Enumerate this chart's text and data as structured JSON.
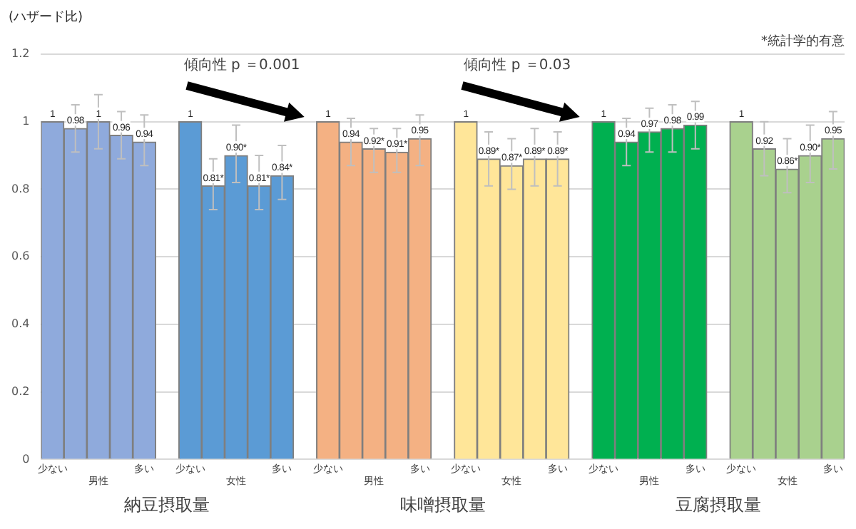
{
  "chart_data": {
    "type": "bar",
    "ylabel": "(ハザード比)",
    "categories": [
      "少ない",
      null,
      "男性",
      null,
      "多い",
      null,
      "少ない",
      null,
      "女性",
      null,
      "多い",
      null,
      "少ない",
      null,
      "男性",
      null,
      "多い",
      null,
      "少ない",
      null,
      "女性",
      null,
      "多い",
      null,
      "少ない",
      null,
      "男性",
      null,
      "多い",
      null,
      "少ない",
      null,
      "女性",
      null,
      "多い"
    ],
    "values": [
      1,
      0.98,
      1,
      0.96,
      0.94,
      null,
      1,
      0.81,
      0.9,
      0.81,
      0.84,
      null,
      1,
      0.94,
      0.92,
      0.91,
      0.95,
      null,
      1,
      0.89,
      0.87,
      0.89,
      0.89,
      null,
      1,
      0.94,
      0.97,
      0.98,
      0.99,
      null,
      1,
      0.92,
      0.86,
      0.9,
      0.95
    ],
    "value_labels": [
      "1",
      "0.98",
      "1",
      "0.96",
      "0.94",
      null,
      "1",
      "0.81*",
      "0.90*",
      "0.81*",
      "0.84*",
      null,
      "1",
      "0.94",
      "0.92*",
      "0.91*",
      "0.95",
      null,
      "1",
      "0.89*",
      "0.87*",
      "0.89*",
      "0.89*",
      null,
      "1",
      "0.94",
      "0.97",
      "0.98",
      "0.99",
      null,
      "1",
      "0.92",
      "0.86*",
      "0.90*",
      "0.95"
    ],
    "colors": [
      "#8faadc",
      "#8faadc",
      "#8faadc",
      "#8faadc",
      "#8faadc",
      null,
      "#5b9bd5",
      "#5b9bd5",
      "#5b9bd5",
      "#5b9bd5",
      "#5b9bd5",
      null,
      "#f4b183",
      "#f4b183",
      "#f4b183",
      "#f4b183",
      "#f4b183",
      null,
      "#ffe699",
      "#ffe699",
      "#ffe699",
      "#ffe699",
      "#ffe699",
      null,
      "#00b050",
      "#00b050",
      "#00b050",
      "#00b050",
      "#00b050",
      null,
      "#a9d18e",
      "#a9d18e",
      "#a9d18e",
      "#a9d18e",
      "#a9d18e"
    ],
    "errors": [
      null,
      [
        0.91,
        1.05
      ],
      [
        0.92,
        1.08
      ],
      [
        0.89,
        1.03
      ],
      [
        0.87,
        1.02
      ],
      null,
      null,
      [
        0.74,
        0.89
      ],
      [
        0.82,
        0.99
      ],
      [
        0.74,
        0.9
      ],
      [
        0.77,
        0.93
      ],
      null,
      null,
      [
        0.87,
        1.01
      ],
      [
        0.85,
        0.98
      ],
      [
        0.85,
        0.98
      ],
      [
        0.87,
        1.02
      ],
      null,
      null,
      [
        0.81,
        0.97
      ],
      [
        0.8,
        0.95
      ],
      [
        0.81,
        0.98
      ],
      [
        0.81,
        0.97
      ],
      null,
      null,
      [
        0.87,
        1.01
      ],
      [
        0.91,
        1.04
      ],
      [
        0.91,
        1.05
      ],
      [
        0.92,
        1.06
      ],
      null,
      null,
      [
        0.84,
        1.0
      ],
      [
        0.79,
        0.95
      ],
      [
        0.82,
        0.99
      ],
      [
        0.86,
        1.03
      ]
    ],
    "ylim": [
      0,
      1.2
    ],
    "yticks": [
      0,
      0.2,
      0.4,
      0.6,
      0.8,
      1,
      1.2
    ],
    "grid": "y",
    "legend": false,
    "annotations": [
      "納豆摂取量",
      "味噌摂取量",
      "豆腐摂取量",
      "傾向性 p ＝0.001",
      "傾向性 p ＝0.03",
      "*統計学的有意"
    ]
  }
}
